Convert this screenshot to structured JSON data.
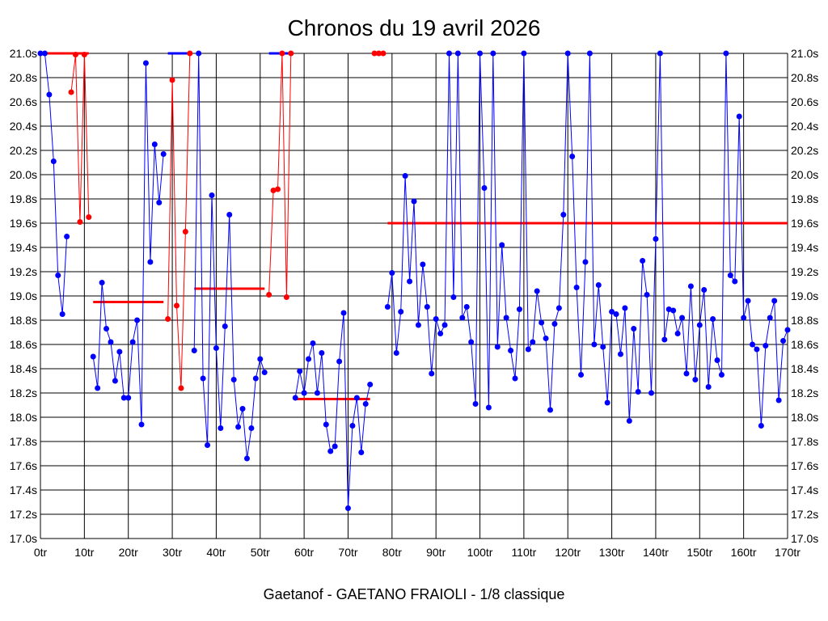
{
  "chart_data": {
    "type": "line",
    "title": "Chronos du 19 avril 2026",
    "subtitle": "Gaetanof - GAETANO FRAIOLI - 1/8 classique",
    "xlabel": "",
    "ylabel": "",
    "xlim": [
      0,
      170
    ],
    "ylim": [
      17.0,
      21.0
    ],
    "x_tick_values": [
      0,
      10,
      20,
      30,
      40,
      50,
      60,
      70,
      80,
      90,
      100,
      110,
      120,
      130,
      140,
      150,
      160,
      170
    ],
    "x_tick_labels": [
      "0tr",
      "10tr",
      "20tr",
      "30tr",
      "40tr",
      "50tr",
      "60tr",
      "70tr",
      "80tr",
      "90tr",
      "100tr",
      "110tr",
      "120tr",
      "130tr",
      "140tr",
      "150tr",
      "160tr",
      "170tr"
    ],
    "y_tick_values": [
      17.0,
      17.2,
      17.4,
      17.6,
      17.8,
      18.0,
      18.2,
      18.4,
      18.6,
      18.8,
      19.0,
      19.2,
      19.4,
      19.6,
      19.8,
      20.0,
      20.2,
      20.4,
      20.6,
      20.8,
      21.0
    ],
    "y_tick_labels": [
      "17.0s",
      "17.2s",
      "17.4s",
      "17.6s",
      "17.8s",
      "18.0s",
      "18.2s",
      "18.4s",
      "18.6s",
      "18.8s",
      "19.0s",
      "19.2s",
      "19.4s",
      "19.6s",
      "19.8s",
      "20.0s",
      "20.2s",
      "20.4s",
      "20.6s",
      "20.8s",
      "21.0s"
    ],
    "grid": true,
    "colors": {
      "blue": "#0000ff",
      "red": "#ff0000",
      "grid": "#000000"
    },
    "series": [
      {
        "color": "blue",
        "x": [
          0,
          1,
          2,
          3,
          4,
          5,
          6
        ],
        "y": [
          21.0,
          21.0,
          20.66,
          20.11,
          19.17,
          18.85,
          19.49
        ]
      },
      {
        "color": "red",
        "x": [
          7,
          8,
          9,
          10,
          11
        ],
        "y": [
          20.68,
          20.99,
          19.61,
          20.99,
          19.65
        ]
      },
      {
        "color": "blue",
        "x": [
          12,
          13,
          14,
          15,
          16,
          17,
          18,
          19,
          20,
          21,
          22,
          23,
          24,
          25,
          26,
          27,
          28
        ],
        "y": [
          18.5,
          18.24,
          19.11,
          18.73,
          18.62,
          18.3,
          18.54,
          18.16,
          18.16,
          18.62,
          18.8,
          17.94,
          20.92,
          19.28,
          20.25,
          19.77,
          20.17
        ]
      },
      {
        "color": "red",
        "x": [
          29,
          30,
          31,
          32,
          33,
          34
        ],
        "y": [
          18.81,
          20.78,
          18.92,
          18.24,
          19.53,
          21.0
        ]
      },
      {
        "color": "blue",
        "x": [
          35,
          36,
          37,
          38,
          39,
          40,
          41,
          42,
          43,
          44,
          45,
          46,
          47,
          48,
          49,
          50,
          51
        ],
        "y": [
          18.55,
          21.0,
          18.32,
          17.77,
          19.83,
          18.57,
          17.91,
          18.75,
          19.67,
          18.31,
          17.92,
          18.07,
          17.66,
          17.91,
          18.32,
          18.48,
          18.37
        ]
      },
      {
        "color": "red",
        "x": [
          52,
          53,
          54,
          55,
          56,
          57
        ],
        "y": [
          19.01,
          19.87,
          19.88,
          21.0,
          18.99,
          21.0
        ]
      },
      {
        "color": "blue",
        "x": [
          58,
          59,
          60,
          61,
          62,
          63,
          64,
          65,
          66,
          67,
          68,
          69,
          70,
          71,
          72,
          73,
          74,
          75
        ],
        "y": [
          18.16,
          18.38,
          18.2,
          18.48,
          18.61,
          18.2,
          18.53,
          17.94,
          17.72,
          17.76,
          18.46,
          18.86,
          17.25,
          17.93,
          18.16,
          17.71,
          18.11,
          18.27
        ]
      },
      {
        "color": "red",
        "x": [
          76,
          77,
          78
        ],
        "y": [
          21.0,
          21.0,
          21.0
        ]
      },
      {
        "color": "blue",
        "x": [
          79,
          80,
          81,
          82,
          83,
          84,
          85,
          86,
          87,
          88,
          89,
          90,
          91,
          92,
          93,
          94,
          95,
          96,
          97,
          98,
          99,
          100,
          101,
          102,
          103,
          104,
          105,
          106,
          107,
          108,
          109,
          110,
          111,
          112,
          113,
          114,
          115,
          116,
          117,
          118,
          119,
          120,
          121,
          122,
          123,
          124,
          125,
          126,
          127,
          128,
          129,
          130,
          131,
          132,
          133,
          134,
          135,
          136,
          137,
          138,
          139,
          140,
          141,
          142,
          143,
          144,
          145,
          146,
          147,
          148,
          149,
          150,
          151,
          152,
          153,
          154,
          155,
          156,
          157,
          158,
          159,
          160,
          161,
          162,
          163,
          164,
          165,
          166,
          167,
          168,
          169,
          170
        ],
        "y": [
          18.91,
          19.19,
          18.53,
          18.87,
          19.99,
          19.12,
          19.78,
          18.76,
          19.26,
          18.91,
          18.36,
          18.81,
          18.69,
          18.76,
          21.0,
          18.99,
          21.0,
          18.82,
          18.91,
          18.62,
          18.11,
          21.0,
          19.89,
          18.08,
          21.0,
          18.58,
          19.42,
          18.82,
          18.55,
          18.32,
          18.89,
          21.0,
          18.56,
          18.62,
          19.04,
          18.78,
          18.65,
          18.06,
          18.77,
          18.9,
          19.67,
          21.0,
          20.15,
          19.07,
          18.35,
          19.28,
          21.0,
          18.6,
          19.09,
          18.58,
          18.12,
          18.87,
          18.85,
          18.52,
          18.9,
          17.97,
          18.73,
          18.21,
          19.29,
          19.01,
          18.2,
          19.47,
          21.0,
          18.64,
          18.89,
          18.88,
          18.69,
          18.82,
          18.36,
          19.08,
          18.31,
          18.76,
          19.05,
          18.25,
          18.81,
          18.47,
          18.35,
          21.0,
          19.17,
          19.12,
          20.48,
          18.82,
          18.96,
          18.6,
          18.56,
          17.93,
          18.59,
          18.82,
          18.96,
          18.14,
          18.63,
          18.72
        ]
      }
    ],
    "average_segments": [
      {
        "x": [
          0,
          11
        ],
        "y": 21.0
      },
      {
        "x": [
          12,
          28
        ],
        "y": 18.95
      },
      {
        "x": [
          35,
          51
        ],
        "y": 19.06
      },
      {
        "x": [
          58,
          75
        ],
        "y": 18.15
      },
      {
        "x": [
          79,
          170
        ],
        "y": 19.6
      }
    ],
    "dash_segments": [
      {
        "x": [
          29,
          34
        ],
        "y": 21.0
      },
      {
        "x": [
          52,
          57
        ],
        "y": 21.0
      }
    ]
  }
}
